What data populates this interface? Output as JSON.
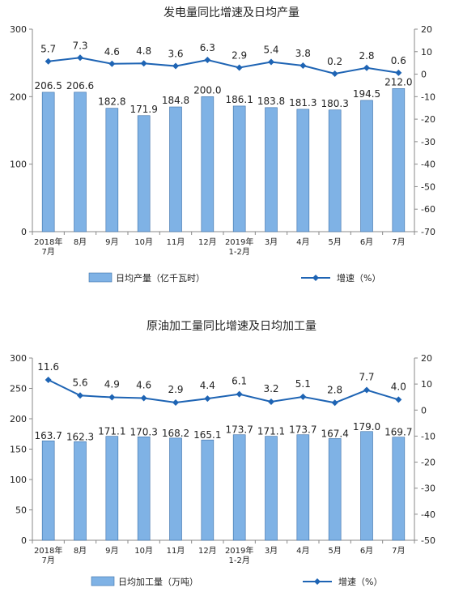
{
  "chart_data": [
    {
      "type": "bar",
      "title": "发电量同比增速及日均产量",
      "categories": [
        [
          "2018年",
          "7月"
        ],
        [
          "8月"
        ],
        [
          "9月"
        ],
        [
          "10月"
        ],
        [
          "11月"
        ],
        [
          "12月"
        ],
        [
          "2019年",
          "1-2月"
        ],
        [
          "3月"
        ],
        [
          "4月"
        ],
        [
          "5月"
        ],
        [
          "6月"
        ],
        [
          "7月"
        ]
      ],
      "series": [
        {
          "name": "日均产量（亿千瓦时）",
          "type": "bar",
          "axis": "left",
          "color": "#7fb2e5",
          "values": [
            206.5,
            206.6,
            182.8,
            171.9,
            184.8,
            200.0,
            186.1,
            183.8,
            181.3,
            180.3,
            194.5,
            212.0
          ],
          "labels": [
            "206.5",
            "206.6",
            "182.8",
            "171.9",
            "184.8",
            "200.0",
            "186.1",
            "183.8",
            "181.3",
            "180.3",
            "194.5",
            "212.0"
          ]
        },
        {
          "name": "增速（%）",
          "type": "line",
          "axis": "right",
          "color": "#1e64b4",
          "values": [
            5.7,
            7.3,
            4.6,
            4.8,
            3.6,
            6.3,
            2.9,
            5.4,
            3.8,
            0.2,
            2.8,
            0.6
          ],
          "labels": [
            "5.7",
            "7.3",
            "4.6",
            "4.8",
            "3.6",
            "6.3",
            "2.9",
            "5.4",
            "3.8",
            "0.2",
            "2.8",
            "0.6"
          ]
        }
      ],
      "ylim_left": [
        0,
        300
      ],
      "yticks_left": [
        0,
        100,
        200,
        300
      ],
      "ylim_right": [
        -70,
        20
      ],
      "yticks_right": [
        20,
        10,
        0,
        -10,
        -20,
        -30,
        -40,
        -50,
        -60,
        -70
      ],
      "legend": "bottom"
    },
    {
      "type": "bar",
      "title": "原油加工量同比增速及日均加工量",
      "categories": [
        [
          "2018年",
          "7月"
        ],
        [
          "8月"
        ],
        [
          "9月"
        ],
        [
          "10月"
        ],
        [
          "11月"
        ],
        [
          "12月"
        ],
        [
          "2019年",
          "1-2月"
        ],
        [
          "3月"
        ],
        [
          "4月"
        ],
        [
          "5月"
        ],
        [
          "6月"
        ],
        [
          "7月"
        ]
      ],
      "series": [
        {
          "name": "日均加工量（万吨）",
          "type": "bar",
          "axis": "left",
          "color": "#7fb2e5",
          "values": [
            163.7,
            162.3,
            171.1,
            170.3,
            168.2,
            165.1,
            173.7,
            171.1,
            173.7,
            167.4,
            179.0,
            169.7
          ],
          "labels": [
            "163.7",
            "162.3",
            "171.1",
            "170.3",
            "168.2",
            "165.1",
            "173.7",
            "171.1",
            "173.7",
            "167.4",
            "179.0",
            "169.7"
          ]
        },
        {
          "name": "增速（%）",
          "type": "line",
          "axis": "right",
          "color": "#1e64b4",
          "values": [
            11.6,
            5.6,
            4.9,
            4.6,
            2.9,
            4.4,
            6.1,
            3.2,
            5.1,
            2.8,
            7.7,
            4.0
          ],
          "labels": [
            "11.6",
            "5.6",
            "4.9",
            "4.6",
            "2.9",
            "4.4",
            "6.1",
            "3.2",
            "5.1",
            "2.8",
            "7.7",
            "4.0"
          ]
        }
      ],
      "ylim_left": [
        0,
        300
      ],
      "yticks_left": [
        0,
        50,
        100,
        150,
        200,
        250,
        300
      ],
      "ylim_right": [
        -50,
        20
      ],
      "yticks_right": [
        20,
        10,
        0,
        -10,
        -20,
        -30,
        -40,
        -50
      ],
      "legend": "bottom"
    }
  ]
}
